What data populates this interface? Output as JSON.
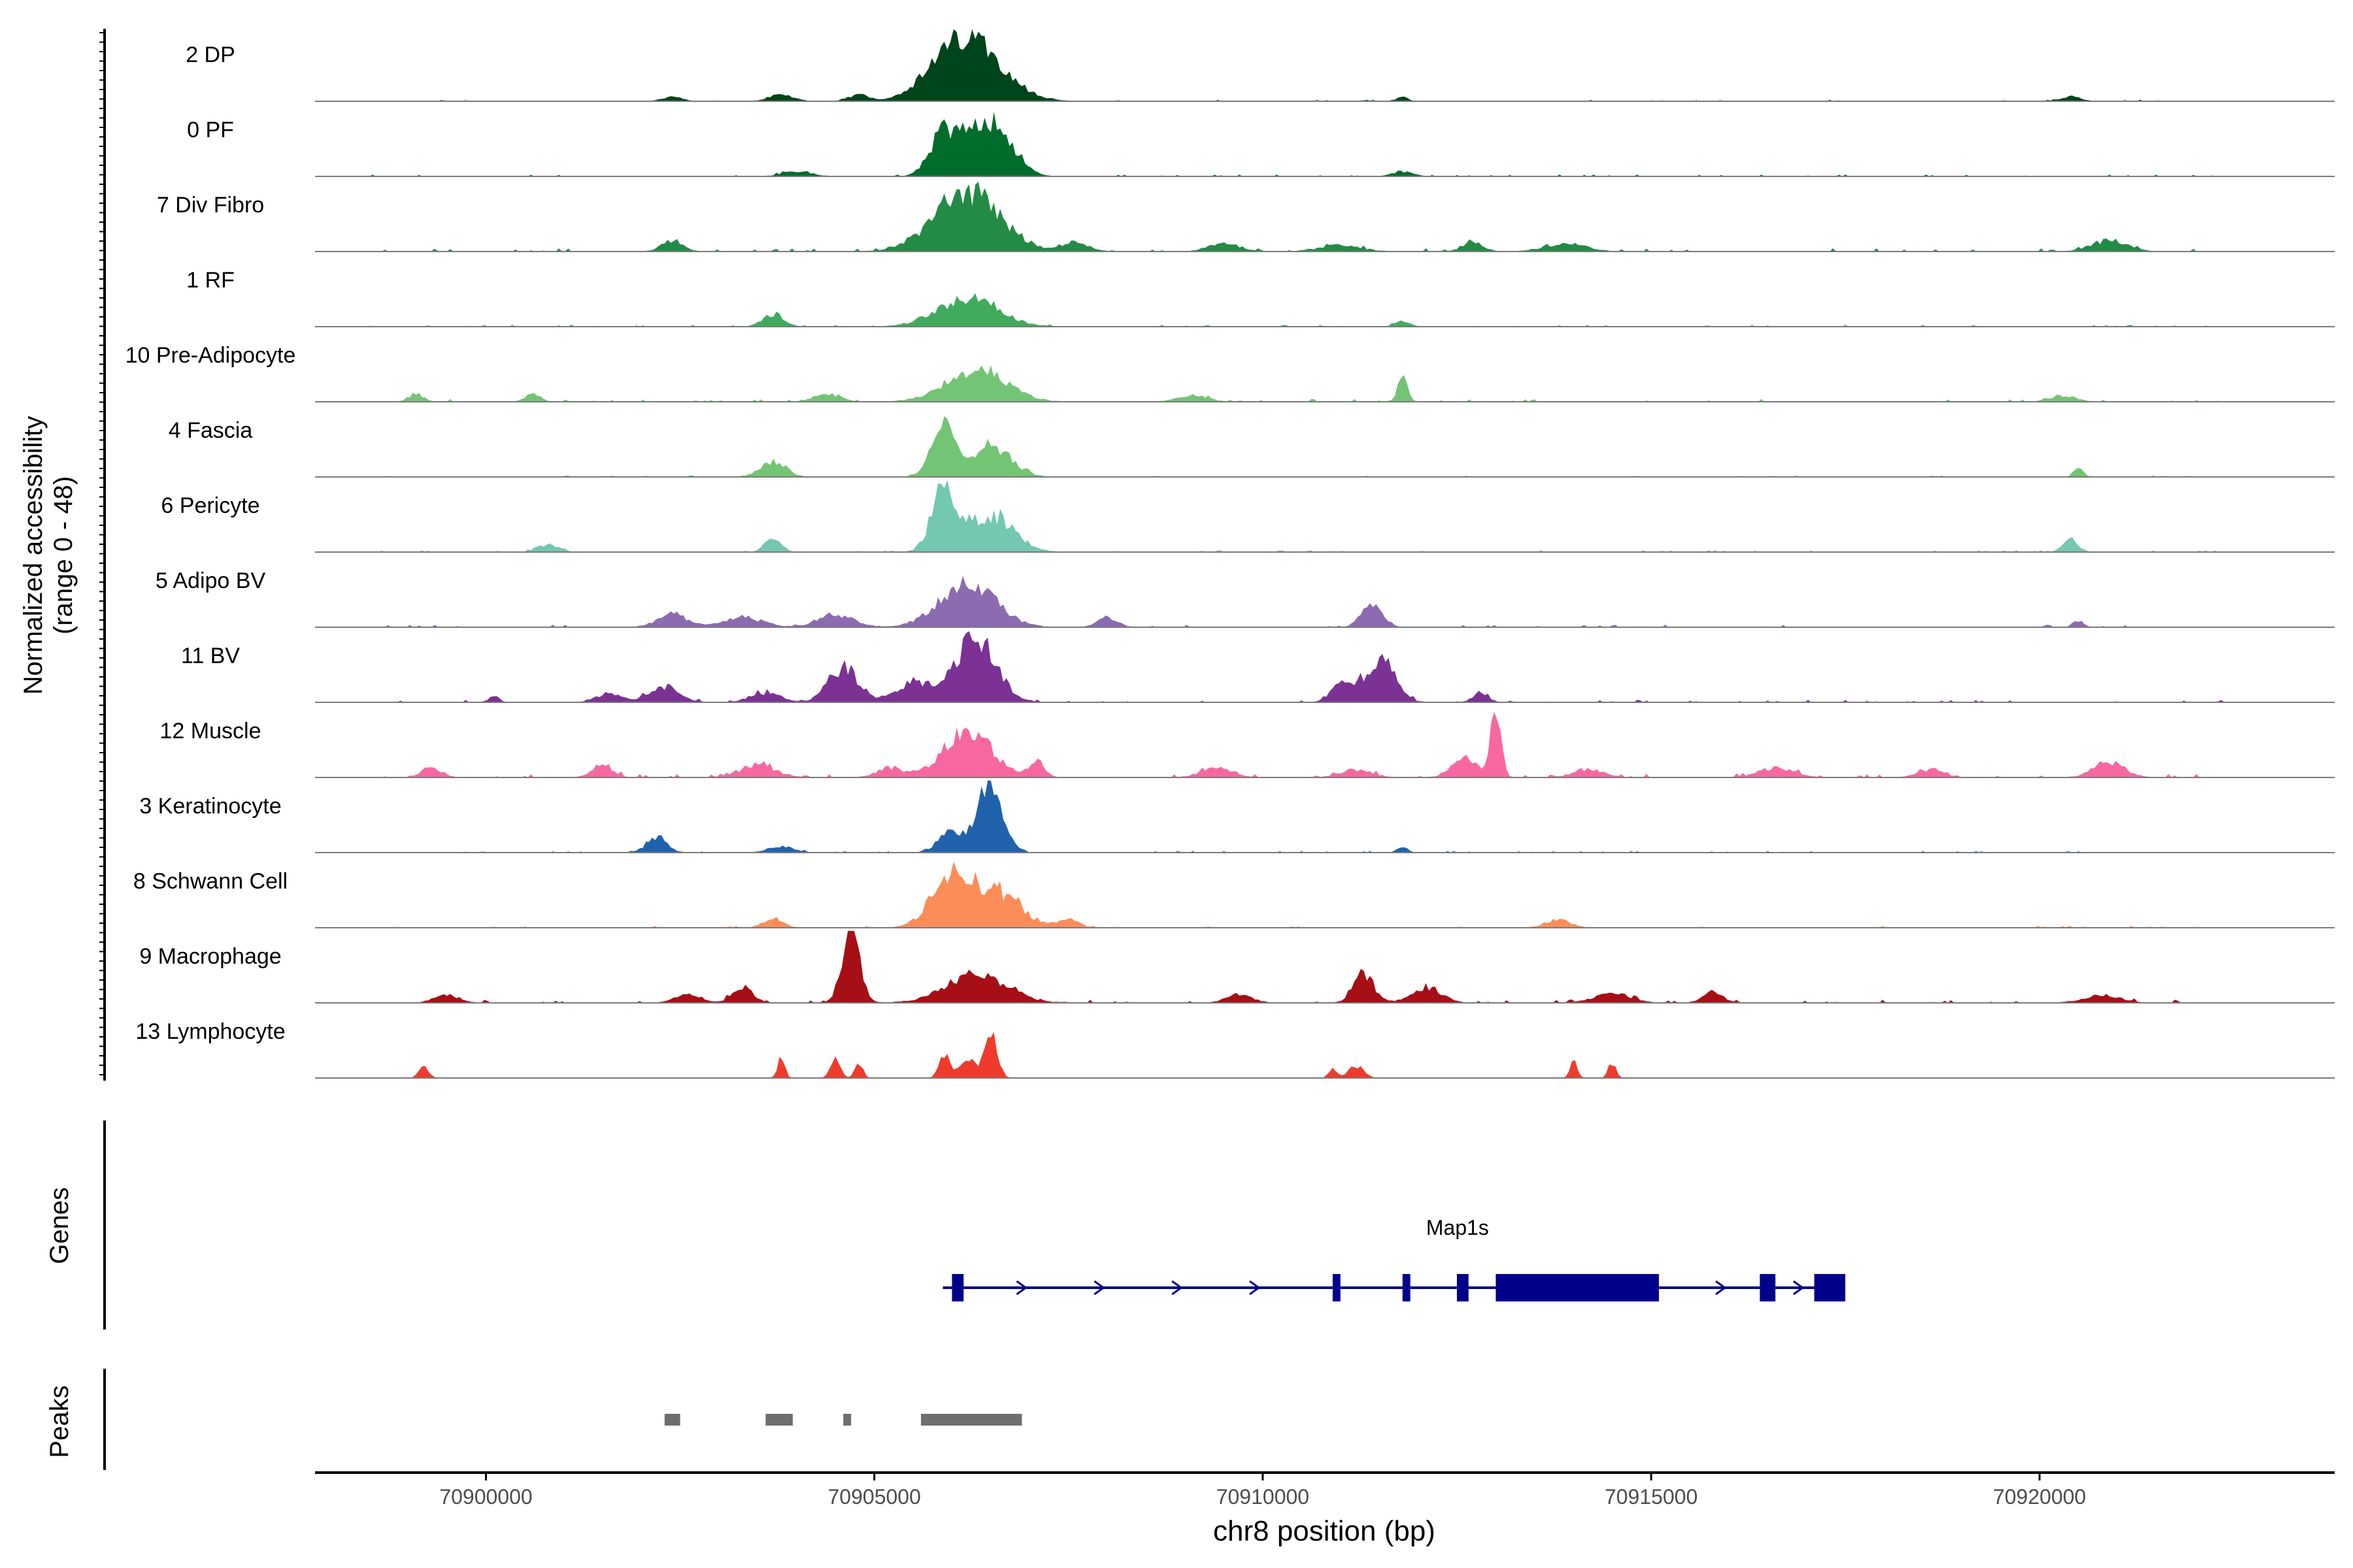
{
  "chart_data": {
    "type": "area",
    "title": "",
    "ylabel_line1": "Normalized accessibility",
    "ylabel_line2": "(range 0 - 48)",
    "xlabel": "chr8 position (bp)",
    "xlim": [
      70897800,
      70923800
    ],
    "ylim": [
      0,
      48
    ],
    "x_ticks": [
      "70900000",
      "70905000",
      "70910000",
      "70915000",
      "70920000"
    ],
    "x_tick_values": [
      70900000,
      70905000,
      70910000,
      70915000,
      70920000
    ],
    "tracks": [
      {
        "name": "2 DP",
        "color": "#00441b",
        "peaks": [
          [
            70906200,
            42,
            1300
          ],
          [
            70904800,
            4,
            400
          ],
          [
            70903800,
            4,
            500
          ],
          [
            70902400,
            3,
            400
          ],
          [
            70911800,
            3,
            200
          ],
          [
            70920400,
            3,
            400
          ]
        ],
        "noise": 1.0
      },
      {
        "name": "0 PF",
        "color": "#006d2c",
        "peaks": [
          [
            70905900,
            28,
            550
          ],
          [
            70906600,
            28,
            700
          ],
          [
            70906300,
            22,
            500
          ],
          [
            70904000,
            3,
            600
          ],
          [
            70911800,
            3,
            400
          ]
        ],
        "noise": 1.2
      },
      {
        "name": "7 Div Fibro",
        "color": "#238b45",
        "peaks": [
          [
            70906200,
            38,
            1300
          ],
          [
            70902400,
            7,
            400
          ],
          [
            70907600,
            6,
            500
          ],
          [
            70909500,
            5,
            600
          ],
          [
            70911000,
            4,
            800
          ],
          [
            70912700,
            6,
            400
          ],
          [
            70913900,
            5,
            800
          ],
          [
            70920900,
            7,
            700
          ]
        ],
        "noise": 2.2
      },
      {
        "name": "1 RF",
        "color": "#41ab5d",
        "peaks": [
          [
            70906200,
            18,
            1200
          ],
          [
            70903700,
            8,
            400
          ],
          [
            70911800,
            3,
            300
          ]
        ],
        "noise": 1.2
      },
      {
        "name": "10 Pre-Adipocyte",
        "color": "#74c476",
        "peaks": [
          [
            70906300,
            20,
            1200
          ],
          [
            70911800,
            14,
            200
          ],
          [
            70899100,
            5,
            300
          ],
          [
            70900600,
            5,
            300
          ],
          [
            70904400,
            5,
            500
          ],
          [
            70909100,
            4,
            600
          ],
          [
            70920300,
            4,
            500
          ]
        ],
        "noise": 1.8
      },
      {
        "name": "4 Fascia",
        "color": "#74c476",
        "peaks": [
          [
            70905900,
            30,
            500
          ],
          [
            70906500,
            20,
            800
          ],
          [
            70903700,
            10,
            500
          ],
          [
            70920500,
            5,
            200
          ]
        ],
        "noise": 1.0
      },
      {
        "name": "6 Pericyte",
        "color": "#74c7b0",
        "peaks": [
          [
            70905900,
            38,
            500
          ],
          [
            70906500,
            24,
            900
          ],
          [
            70903700,
            10,
            300
          ],
          [
            70920400,
            8,
            300
          ],
          [
            70900800,
            5,
            400
          ]
        ],
        "noise": 1.2
      },
      {
        "name": "5 Adipo BV",
        "color": "#8c6bb1",
        "peaks": [
          [
            70906200,
            28,
            1100
          ],
          [
            70911400,
            16,
            400
          ],
          [
            70902400,
            8,
            600
          ],
          [
            70903300,
            6,
            800
          ],
          [
            70904500,
            8,
            700
          ],
          [
            70908000,
            6,
            400
          ],
          [
            70920500,
            4,
            200
          ]
        ],
        "noise": 1.6
      },
      {
        "name": "11 BV",
        "color": "#7b3294",
        "peaks": [
          [
            70906300,
            42,
            800
          ],
          [
            70905500,
            12,
            700
          ],
          [
            70904600,
            22,
            600
          ],
          [
            70911500,
            28,
            600
          ],
          [
            70911000,
            10,
            400
          ],
          [
            70902300,
            10,
            600
          ],
          [
            70901600,
            6,
            500
          ],
          [
            70903600,
            6,
            600
          ],
          [
            70912800,
            6,
            300
          ],
          [
            70900100,
            4,
            200
          ]
        ],
        "noise": 1.6
      },
      {
        "name": "12 Muscle",
        "color": "#f768a1",
        "peaks": [
          [
            70906200,
            28,
            1000
          ],
          [
            70913000,
            44,
            200
          ],
          [
            70907100,
            10,
            300
          ],
          [
            70912600,
            12,
            500
          ],
          [
            70920900,
            10,
            600
          ],
          [
            70899300,
            6,
            400
          ],
          [
            70901500,
            8,
            400
          ],
          [
            70903500,
            8,
            700
          ],
          [
            70905200,
            6,
            500
          ],
          [
            70909400,
            6,
            600
          ],
          [
            70911200,
            5,
            600
          ],
          [
            70914200,
            5,
            600
          ],
          [
            70916600,
            6,
            700
          ],
          [
            70918600,
            5,
            500
          ]
        ],
        "noise": 2.2
      },
      {
        "name": "3 Keratinocyte",
        "color": "#2162ad",
        "peaks": [
          [
            70906500,
            44,
            500
          ],
          [
            70906000,
            14,
            500
          ],
          [
            70902200,
            10,
            400
          ],
          [
            70903800,
            4,
            500
          ],
          [
            70911800,
            4,
            200
          ]
        ],
        "noise": 1.0
      },
      {
        "name": "8 Schwann Cell",
        "color": "#fc8d59",
        "peaks": [
          [
            70906000,
            32,
            800
          ],
          [
            70906600,
            22,
            900
          ],
          [
            70903700,
            6,
            400
          ],
          [
            70907500,
            6,
            400
          ],
          [
            70913800,
            5,
            500
          ]
        ],
        "noise": 1.2
      },
      {
        "name": "9 Macrophage",
        "color": "#a50f15",
        "peaks": [
          [
            70904700,
            46,
            350
          ],
          [
            70906300,
            18,
            1200
          ],
          [
            70903300,
            10,
            400
          ],
          [
            70911300,
            18,
            400
          ],
          [
            70912100,
            10,
            600
          ],
          [
            70902600,
            6,
            500
          ],
          [
            70899500,
            5,
            500
          ],
          [
            70909700,
            6,
            500
          ],
          [
            70914500,
            6,
            700
          ],
          [
            70915800,
            7,
            400
          ],
          [
            70920800,
            5,
            700
          ]
        ],
        "noise": 2.0
      },
      {
        "name": "13 Lymphocyte",
        "color": "#ef3b2c",
        "peaks": [
          [
            70906500,
            30,
            250
          ],
          [
            70905900,
            16,
            200
          ],
          [
            70906200,
            12,
            300
          ],
          [
            70903800,
            12,
            150
          ],
          [
            70904500,
            12,
            200
          ],
          [
            70904800,
            10,
            150
          ],
          [
            70899200,
            7,
            200
          ],
          [
            70911200,
            8,
            300
          ],
          [
            70914000,
            10,
            150
          ],
          [
            70914500,
            10,
            150
          ],
          [
            70910900,
            6,
            150
          ]
        ],
        "noise": 0.0
      }
    ],
    "genes_label": "Genes",
    "gene": {
      "name": "Map1s",
      "strand": "+",
      "start": 70906000,
      "end": 70917500,
      "exons": [
        [
          70906000,
          70906150
        ],
        [
          70910900,
          70911000
        ],
        [
          70911800,
          70911900
        ],
        [
          70912500,
          70912650
        ],
        [
          70913000,
          70915100
        ],
        [
          70916400,
          70916600
        ],
        [
          70917100,
          70917500
        ]
      ]
    },
    "peaks_label": "Peaks",
    "peak_regions": [
      [
        70902300,
        70902500
      ],
      [
        70903600,
        70903950
      ],
      [
        70904600,
        70904700
      ],
      [
        70905600,
        70906900
      ]
    ]
  }
}
